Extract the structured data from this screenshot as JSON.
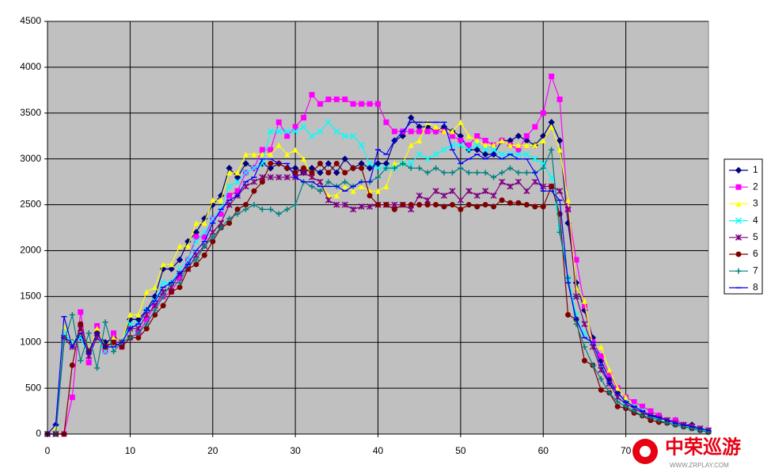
{
  "chart_data": {
    "type": "line",
    "x": [
      0,
      1,
      2,
      3,
      4,
      5,
      6,
      7,
      8,
      9,
      10,
      11,
      12,
      13,
      14,
      15,
      16,
      17,
      18,
      19,
      20,
      21,
      22,
      23,
      24,
      25,
      26,
      27,
      28,
      29,
      30,
      31,
      32,
      33,
      34,
      35,
      36,
      37,
      38,
      39,
      40,
      41,
      42,
      43,
      44,
      45,
      46,
      47,
      48,
      49,
      50,
      51,
      52,
      53,
      54,
      55,
      56,
      57,
      58,
      59,
      60,
      61,
      62,
      63,
      64,
      65,
      66,
      67,
      68,
      69,
      70,
      71,
      72,
      73,
      74,
      75,
      76,
      77,
      78,
      79,
      80
    ],
    "xlim": [
      0,
      80
    ],
    "xticks": [
      0,
      10,
      20,
      30,
      40,
      50,
      60,
      70
    ],
    "ylim": [
      0,
      4500
    ],
    "yticks": [
      0,
      500,
      1000,
      1500,
      2000,
      2500,
      3000,
      3500,
      4000,
      4500
    ],
    "grid": true,
    "legend": "right",
    "series": [
      {
        "name": "1",
        "color": "#000080",
        "marker": "diamond",
        "values": [
          0,
          100,
          1050,
          1000,
          1050,
          900,
          1100,
          1000,
          1050,
          1000,
          1250,
          1250,
          1350,
          1500,
          1800,
          1800,
          1900,
          2100,
          2200,
          2350,
          2500,
          2600,
          2900,
          2800,
          2950,
          2900,
          2950,
          2900,
          2950,
          2900,
          2900,
          2850,
          2900,
          2850,
          2950,
          2850,
          3000,
          2900,
          2950,
          2900,
          2950,
          2950,
          3200,
          3250,
          3450,
          3350,
          3350,
          3300,
          3350,
          3300,
          3250,
          3100,
          3100,
          3050,
          3050,
          3200,
          3200,
          3250,
          3200,
          3150,
          3250,
          3400,
          3200,
          2300,
          1650,
          1350,
          1050,
          800,
          600,
          450,
          350,
          300,
          250,
          200,
          200,
          150,
          150,
          100,
          100,
          50,
          30
        ]
      },
      {
        "name": "2",
        "color": "#ff00ff",
        "marker": "square",
        "values": [
          0,
          0,
          0,
          400,
          1330,
          780,
          1180,
          900,
          1100,
          950,
          1050,
          1100,
          1250,
          1400,
          1500,
          1550,
          1700,
          1900,
          2150,
          2150,
          2350,
          2400,
          2600,
          2650,
          2850,
          2900,
          3100,
          3100,
          3400,
          3250,
          3350,
          3450,
          3700,
          3600,
          3650,
          3650,
          3650,
          3600,
          3600,
          3600,
          3600,
          3400,
          3300,
          3300,
          3300,
          3300,
          3300,
          3300,
          3300,
          3250,
          3200,
          3150,
          3250,
          3200,
          3150,
          3200,
          3150,
          3100,
          3250,
          3350,
          3500,
          3900,
          3650,
          2450,
          1900,
          1400,
          1000,
          850,
          650,
          500,
          400,
          350,
          300,
          250,
          200,
          150,
          150,
          100,
          80,
          60,
          40
        ]
      },
      {
        "name": "3",
        "color": "#ffff00",
        "marker": "triangle",
        "values": [
          0,
          80,
          1180,
          1000,
          1100,
          900,
          1150,
          950,
          1050,
          1000,
          1300,
          1300,
          1550,
          1600,
          1850,
          1850,
          2050,
          2050,
          2300,
          2300,
          2550,
          2550,
          2850,
          2850,
          3050,
          3050,
          3050,
          3050,
          3150,
          3050,
          3100,
          3000,
          2800,
          2750,
          2600,
          2600,
          2700,
          2650,
          2700,
          2650,
          2650,
          2700,
          2950,
          2950,
          3150,
          3200,
          3400,
          3350,
          3300,
          3300,
          3400,
          3250,
          3200,
          3150,
          3150,
          3200,
          3150,
          3150,
          3150,
          3150,
          3200,
          3350,
          3100,
          2550,
          1600,
          1450,
          950,
          950,
          700,
          500,
          400,
          300,
          250,
          200,
          150,
          150,
          120,
          100,
          80,
          60,
          40
        ]
      },
      {
        "name": "4",
        "color": "#00ffff",
        "marker": "x",
        "values": [
          0,
          0,
          1100,
          1000,
          1050,
          850,
          1050,
          900,
          1000,
          1000,
          1200,
          1200,
          1350,
          1450,
          1650,
          1650,
          1800,
          1900,
          2100,
          2200,
          2350,
          2450,
          2700,
          2750,
          2850,
          2900,
          2950,
          3300,
          3300,
          3300,
          3300,
          3350,
          3250,
          3300,
          3400,
          3300,
          3250,
          3250,
          3150,
          2950,
          2900,
          2900,
          2900,
          2950,
          2950,
          3050,
          3000,
          3050,
          3100,
          3150,
          3150,
          3100,
          3150,
          3100,
          3100,
          3050,
          3050,
          3050,
          3050,
          3000,
          2950,
          2800,
          2250,
          1700,
          1300,
          1100,
          950,
          700,
          550,
          400,
          350,
          300,
          250,
          200,
          150,
          130,
          100,
          80,
          60,
          50,
          30
        ]
      },
      {
        "name": "5",
        "color": "#800080",
        "marker": "star",
        "values": [
          0,
          0,
          1050,
          950,
          1150,
          850,
          1050,
          950,
          1000,
          1000,
          1150,
          1150,
          1300,
          1400,
          1550,
          1600,
          1750,
          1800,
          1950,
          2050,
          2200,
          2300,
          2500,
          2600,
          2700,
          2750,
          2800,
          2800,
          2800,
          2800,
          2800,
          2850,
          2800,
          2750,
          2550,
          2500,
          2500,
          2450,
          2480,
          2480,
          2500,
          2500,
          2500,
          2500,
          2450,
          2600,
          2550,
          2650,
          2600,
          2650,
          2550,
          2650,
          2600,
          2650,
          2600,
          2750,
          2700,
          2750,
          2650,
          2750,
          2700,
          2700,
          2650,
          2450,
          1500,
          1200,
          950,
          700,
          550,
          400,
          330,
          280,
          230,
          200,
          170,
          150,
          120,
          100,
          80,
          60,
          40
        ]
      },
      {
        "name": "6",
        "color": "#800000",
        "marker": "circle",
        "values": [
          0,
          0,
          0,
          750,
          1200,
          900,
          1100,
          950,
          1000,
          950,
          1050,
          1050,
          1150,
          1300,
          1400,
          1550,
          1600,
          1800,
          1850,
          1950,
          2100,
          2250,
          2300,
          2450,
          2500,
          2650,
          2750,
          2950,
          2950,
          2900,
          2850,
          2900,
          2850,
          2950,
          2850,
          2950,
          2850,
          2900,
          2900,
          2600,
          2500,
          2500,
          2450,
          2500,
          2500,
          2500,
          2500,
          2500,
          2480,
          2500,
          2450,
          2500,
          2480,
          2500,
          2480,
          2550,
          2520,
          2520,
          2500,
          2480,
          2480,
          2700,
          2400,
          1300,
          1250,
          800,
          750,
          480,
          450,
          300,
          280,
          230,
          200,
          150,
          130,
          120,
          100,
          80,
          60,
          40,
          20
        ]
      },
      {
        "name": "7",
        "color": "#008080",
        "marker": "plus",
        "values": [
          0,
          0,
          1000,
          1300,
          800,
          1100,
          720,
          1220,
          900,
          1000,
          1050,
          1100,
          1200,
          1350,
          1500,
          1650,
          1650,
          1850,
          1900,
          2050,
          2150,
          2250,
          2350,
          2400,
          2450,
          2500,
          2450,
          2450,
          2400,
          2450,
          2500,
          2750,
          2700,
          2650,
          2750,
          2700,
          2750,
          2700,
          2750,
          2750,
          2800,
          2900,
          2900,
          2950,
          2900,
          2900,
          2850,
          2900,
          2850,
          2850,
          2900,
          2850,
          2850,
          2850,
          2800,
          2850,
          2900,
          2850,
          2850,
          2850,
          2900,
          3100,
          2200,
          1700,
          1200,
          950,
          750,
          600,
          450,
          350,
          300,
          250,
          200,
          180,
          150,
          120,
          100,
          80,
          60,
          40,
          20
        ]
      },
      {
        "name": "8",
        "color": "#0000ff",
        "marker": "dash",
        "values": [
          0,
          100,
          1280,
          950,
          1100,
          880,
          1100,
          950,
          950,
          1000,
          1150,
          1200,
          1350,
          1450,
          1600,
          1650,
          1750,
          1850,
          2000,
          2100,
          2300,
          2450,
          2550,
          2600,
          2750,
          2800,
          3000,
          3000,
          2950,
          2950,
          2800,
          2750,
          2750,
          2700,
          2700,
          2700,
          2650,
          2700,
          2750,
          2750,
          3100,
          3050,
          3200,
          3300,
          3400,
          3400,
          3400,
          3400,
          3400,
          3100,
          2950,
          3000,
          3050,
          3000,
          3050,
          3000,
          3050,
          3000,
          3000,
          2850,
          2650,
          2650,
          2550,
          1650,
          1250,
          1050,
          1000,
          750,
          550,
          450,
          350,
          300,
          250,
          200,
          180,
          150,
          120,
          100,
          80,
          60,
          40
        ]
      }
    ]
  },
  "watermark": {
    "text": "中荣巡游",
    "url": "WWW.ZRPLAY.COM"
  }
}
